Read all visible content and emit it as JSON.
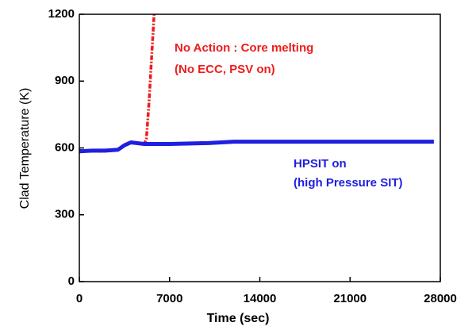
{
  "chart_data": {
    "type": "line",
    "x_label": "Time (sec)",
    "y_label": "Clad Temperature (K)",
    "xlim": [
      0,
      28000
    ],
    "xticks": [
      0,
      7000,
      14000,
      21000,
      28000
    ],
    "ylim": [
      0,
      1200
    ],
    "yticks": [
      0,
      300,
      600,
      900,
      1200
    ],
    "series": [
      {
        "name": "HPSIT on",
        "color": "#1f1fe0",
        "x": [
          0,
          1000,
          2000,
          3000,
          3500,
          4000,
          5000,
          7000,
          10000,
          12000,
          16000,
          20000,
          24000,
          27500
        ],
        "values": [
          585,
          588,
          588,
          592,
          612,
          625,
          618,
          618,
          622,
          628,
          628,
          628,
          628,
          628
        ]
      },
      {
        "name": "No Action",
        "color": "#ee1c1c",
        "x": [
          0,
          500,
          1000,
          2000,
          3000,
          3500,
          4000,
          4500,
          5000,
          5200,
          5400,
          5600,
          5800
        ],
        "values": [
          590,
          585,
          585,
          585,
          592,
          615,
          625,
          620,
          615,
          640,
          800,
          1000,
          1200
        ]
      }
    ],
    "annotations": [
      {
        "text": "No Action : Core melting",
        "color": "#ee1c1c"
      },
      {
        "text": "(No ECC, PSV on)",
        "color": "#ee1c1c"
      },
      {
        "text": "HPSIT on",
        "color": "#1f1fe0"
      },
      {
        "text": "(high Pressure SIT)",
        "color": "#1f1fe0"
      }
    ]
  }
}
